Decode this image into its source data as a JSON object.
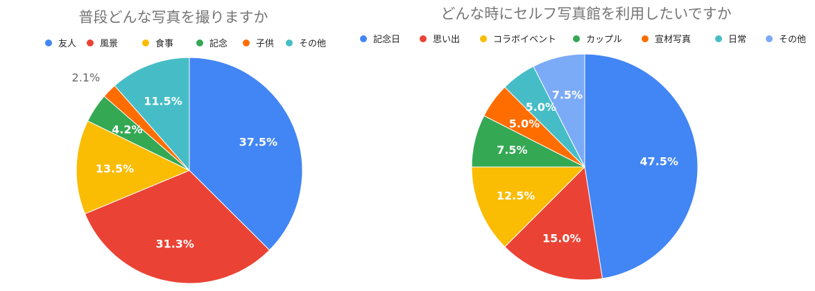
{
  "chart_data": [
    {
      "type": "pie",
      "title": "普段どんな写真を撮りますか",
      "legend_position": "top",
      "categories": [
        "友人",
        "風景",
        "食事",
        "記念",
        "子供",
        "その他"
      ],
      "values": [
        37.5,
        31.3,
        13.5,
        4.2,
        2.1,
        11.5
      ],
      "value_labels": [
        "37.5%",
        "31.3%",
        "13.5%",
        "4.2%",
        "2.1%",
        "11.5%"
      ],
      "colors": [
        "#4285F4",
        "#EA4335",
        "#FBBC04",
        "#34A853",
        "#FF6D01",
        "#46BDC6"
      ]
    },
    {
      "type": "pie",
      "title": "どんな時にセルフ写真館を利用したいですか",
      "legend_position": "top",
      "categories": [
        "記念日",
        "思い出",
        "コラボイベント",
        "カップル",
        "宣材写真",
        "日常",
        "その他"
      ],
      "values": [
        47.5,
        15.0,
        12.5,
        7.5,
        5.0,
        5.0,
        7.5
      ],
      "value_labels": [
        "47.5%",
        "15.0%",
        "12.5%",
        "7.5%",
        "5.0%",
        "5.0%",
        "7.5%"
      ],
      "colors": [
        "#4285F4",
        "#EA4335",
        "#FBBC04",
        "#34A853",
        "#FF6D01",
        "#46BDC6",
        "#7BAAF7"
      ]
    }
  ]
}
